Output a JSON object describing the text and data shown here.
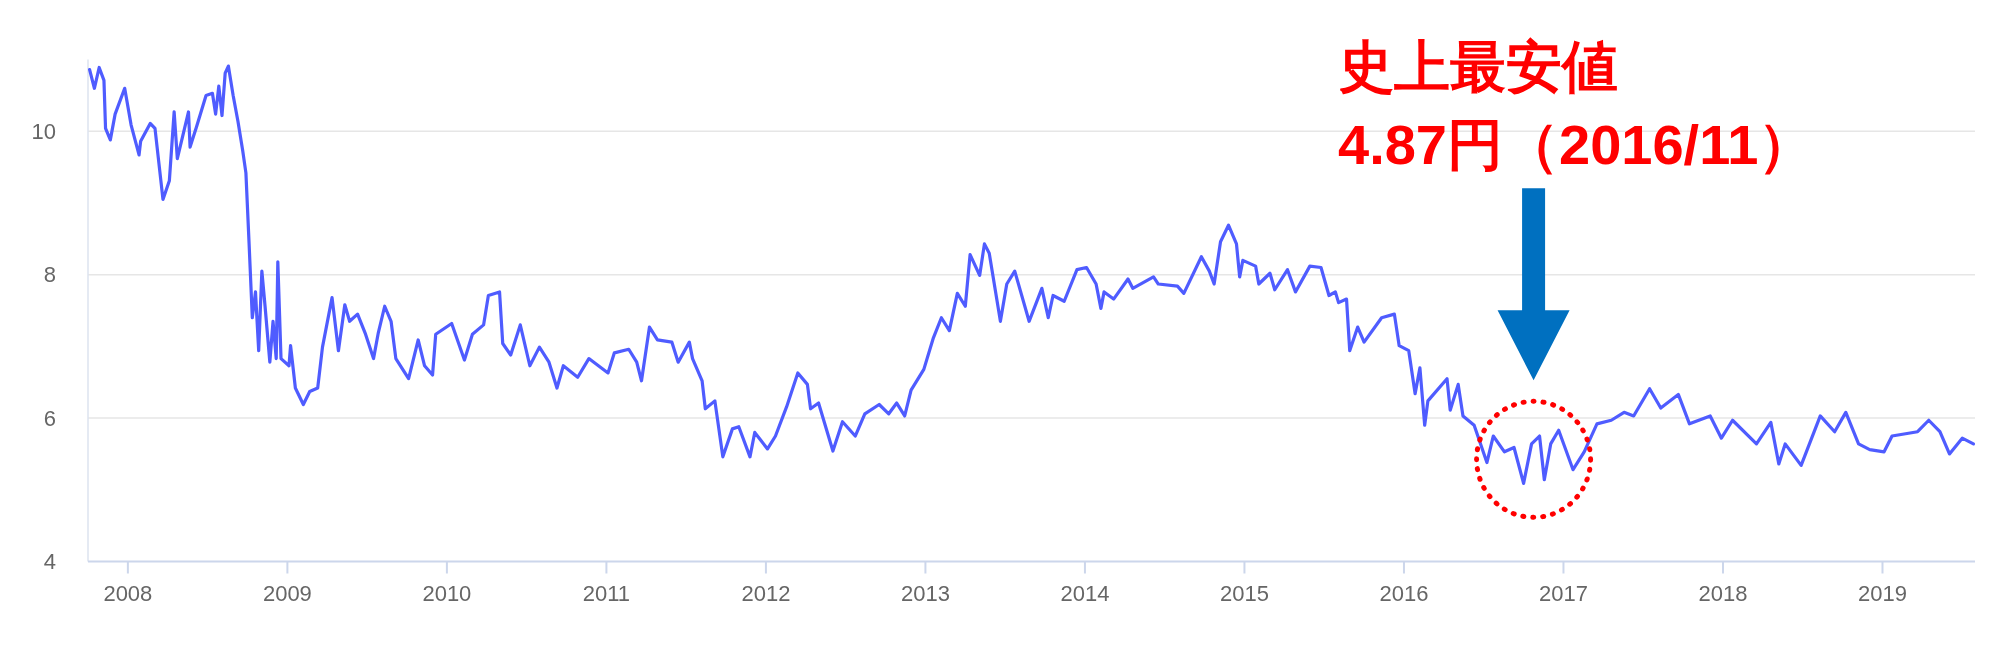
{
  "chart_data": {
    "type": "line",
    "color": "#4f5cff",
    "grid": "y",
    "xlim": [
      2007.75,
      2019.58
    ],
    "ylim": [
      4,
      11
    ],
    "xticks": [
      2008,
      2009,
      2010,
      2011,
      2012,
      2013,
      2014,
      2015,
      2016,
      2017,
      2018,
      2019
    ],
    "yticks": [
      4,
      6,
      8,
      10
    ],
    "annotations": [
      "史上最安値\n4.87円（2016/11）"
    ],
    "x": [
      2007.76,
      2007.79,
      2007.82,
      2007.85,
      2007.86,
      2007.89,
      2007.92,
      2007.98,
      2008.02,
      2008.07,
      2008.08,
      2008.14,
      2008.17,
      2008.22,
      2008.26,
      2008.29,
      2008.31,
      2008.38,
      2008.39,
      2008.43,
      2008.49,
      2008.53,
      2008.55,
      2008.57,
      2008.59,
      2008.61,
      2008.63,
      2008.66,
      2008.69,
      2008.72,
      2008.74,
      2008.76,
      2008.78,
      2008.8,
      2008.82,
      2008.84,
      2008.86,
      2008.89,
      2008.91,
      2008.93,
      2008.94,
      2008.96,
      2009.01,
      2009.02,
      2009.05,
      2009.1,
      2009.14,
      2009.19,
      2009.22,
      2009.28,
      2009.32,
      2009.36,
      2009.39,
      2009.44,
      2009.49,
      2009.54,
      2009.57,
      2009.61,
      2009.65,
      2009.68,
      2009.76,
      2009.82,
      2009.86,
      2009.91,
      2009.93,
      2010.03,
      2010.11,
      2010.16,
      2010.23,
      2010.26,
      2010.33,
      2010.35,
      2010.4,
      2010.46,
      2010.52,
      2010.58,
      2010.64,
      2010.69,
      2010.73,
      2010.82,
      2010.89,
      2011.01,
      2011.05,
      2011.14,
      2011.19,
      2011.22,
      2011.27,
      2011.32,
      2011.41,
      2011.45,
      2011.52,
      2011.54,
      2011.6,
      2011.62,
      2011.68,
      2011.73,
      2011.79,
      2011.83,
      2011.9,
      2011.93,
      2012.01,
      2012.06,
      2012.13,
      2012.2,
      2012.26,
      2012.28,
      2012.33,
      2012.42,
      2012.48,
      2012.56,
      2012.62,
      2012.71,
      2012.77,
      2012.82,
      2012.87,
      2012.91,
      2012.99,
      2013.05,
      2013.1,
      2013.15,
      2013.2,
      2013.25,
      2013.28,
      2013.34,
      2013.37,
      2013.4,
      2013.47,
      2013.51,
      2013.56,
      2013.65,
      2013.73,
      2013.77,
      2013.8,
      2013.87,
      2013.95,
      2014.01,
      2014.07,
      2014.1,
      2014.12,
      2014.18,
      2014.27,
      2014.3,
      2014.43,
      2014.46,
      2014.58,
      2014.62,
      2014.73,
      2014.78,
      2014.81,
      2014.85,
      2014.9,
      2014.95,
      2014.97,
      2014.99,
      2015.07,
      2015.09,
      2015.16,
      2015.19,
      2015.27,
      2015.32,
      2015.41,
      2015.48,
      2015.53,
      2015.57,
      2015.59,
      2015.64,
      2015.66,
      2015.71,
      2015.75,
      2015.86,
      2015.94,
      2015.97,
      2016.03,
      2016.07,
      2016.1,
      2016.13,
      2016.15,
      2016.27,
      2016.29,
      2016.34,
      2016.37,
      2016.44,
      2016.52,
      2016.56,
      2016.63,
      2016.69,
      2016.75,
      2016.8,
      2016.85,
      2016.88,
      2016.92,
      2016.97,
      2017.06,
      2017.13,
      2017.21,
      2017.3,
      2017.38,
      2017.44,
      2017.54,
      2017.61,
      2017.72,
      2017.79,
      2017.92,
      2017.99,
      2018.06,
      2018.21,
      2018.3,
      2018.35,
      2018.39,
      2018.49,
      2018.61,
      2018.7,
      2018.77,
      2018.85,
      2018.92,
      2019.01,
      2019.06,
      2019.22,
      2019.29,
      2019.36,
      2019.42,
      2019.5,
      2019.57
    ],
    "values": [
      10.86,
      10.6,
      10.89,
      10.71,
      10.04,
      9.88,
      10.24,
      10.6,
      10.09,
      9.67,
      9.86,
      10.11,
      10.04,
      9.05,
      9.31,
      10.27,
      9.62,
      10.27,
      9.78,
      10.06,
      10.5,
      10.53,
      10.24,
      10.63,
      10.22,
      10.81,
      10.91,
      10.5,
      10.14,
      9.73,
      9.42,
      8.43,
      7.4,
      7.76,
      6.94,
      8.05,
      7.56,
      6.78,
      7.35,
      6.83,
      8.18,
      6.83,
      6.73,
      7.01,
      6.42,
      6.19,
      6.37,
      6.42,
      6.99,
      7.68,
      6.94,
      7.58,
      7.35,
      7.45,
      7.17,
      6.83,
      7.19,
      7.56,
      7.35,
      6.83,
      6.55,
      7.09,
      6.73,
      6.6,
      7.17,
      7.32,
      6.81,
      7.17,
      7.3,
      7.71,
      7.76,
      7.04,
      6.88,
      7.3,
      6.73,
      6.99,
      6.78,
      6.42,
      6.73,
      6.57,
      6.83,
      6.63,
      6.91,
      6.96,
      6.78,
      6.52,
      7.27,
      7.09,
      7.06,
      6.78,
      7.06,
      6.83,
      6.52,
      6.13,
      6.24,
      5.46,
      5.85,
      5.88,
      5.46,
      5.8,
      5.57,
      5.75,
      6.16,
      6.63,
      6.47,
      6.13,
      6.21,
      5.54,
      5.95,
      5.75,
      6.06,
      6.19,
      6.06,
      6.21,
      6.03,
      6.39,
      6.68,
      7.12,
      7.4,
      7.22,
      7.74,
      7.56,
      8.28,
      7.99,
      8.43,
      8.3,
      7.35,
      7.87,
      8.05,
      7.35,
      7.81,
      7.4,
      7.71,
      7.63,
      8.07,
      8.1,
      7.87,
      7.53,
      7.76,
      7.66,
      7.94,
      7.81,
      7.97,
      7.87,
      7.84,
      7.74,
      8.25,
      8.05,
      7.87,
      8.46,
      8.69,
      8.43,
      7.97,
      8.2,
      8.12,
      7.87,
      8.02,
      7.79,
      8.07,
      7.76,
      8.12,
      8.1,
      7.71,
      7.76,
      7.61,
      7.66,
      6.94,
      7.27,
      7.06,
      7.4,
      7.45,
      7.01,
      6.94,
      6.34,
      6.7,
      5.9,
      6.24,
      6.55,
      6.11,
      6.47,
      6.03,
      5.9,
      5.38,
      5.75,
      5.53,
      5.59,
      5.09,
      5.64,
      5.75,
      5.14,
      5.64,
      5.83,
      5.28,
      5.53,
      5.92,
      5.97,
      6.08,
      6.03,
      6.41,
      6.14,
      6.33,
      5.92,
      6.03,
      5.72,
      5.97,
      5.64,
      5.94,
      5.36,
      5.64,
      5.34,
      6.03,
      5.81,
      6.08,
      5.64,
      5.56,
      5.53,
      5.75,
      5.81,
      5.97,
      5.81,
      5.5,
      5.72,
      5.64
    ]
  }
}
